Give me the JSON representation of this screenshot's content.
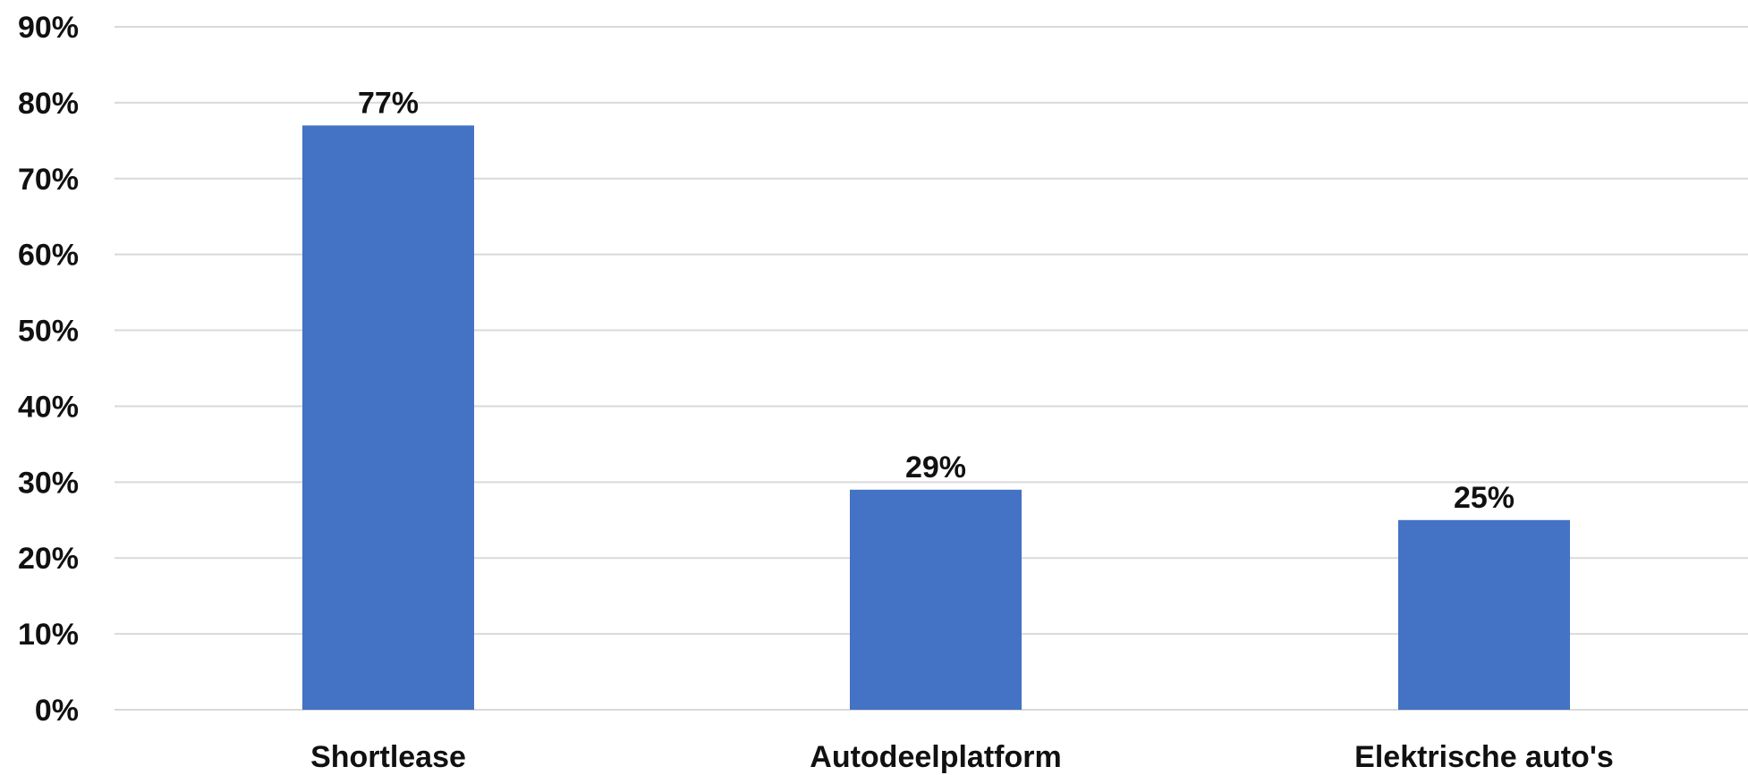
{
  "chart_data": {
    "type": "bar",
    "categories": [
      "Shortlease",
      "Autodeelplatform",
      "Elektrische auto's"
    ],
    "values": [
      77,
      29,
      25
    ],
    "data_labels": [
      "77%",
      "29%",
      "25%"
    ],
    "y_ticks": [
      {
        "value": 0,
        "label": "0%"
      },
      {
        "value": 10,
        "label": "10%"
      },
      {
        "value": 20,
        "label": "20%"
      },
      {
        "value": 30,
        "label": "30%"
      },
      {
        "value": 40,
        "label": "40%"
      },
      {
        "value": 50,
        "label": "50%"
      },
      {
        "value": 60,
        "label": "60%"
      },
      {
        "value": 70,
        "label": "70%"
      },
      {
        "value": 80,
        "label": "80%"
      },
      {
        "value": 90,
        "label": "90%"
      }
    ],
    "ylim": [
      0,
      90
    ],
    "grid": true,
    "legend": "none",
    "colors": {
      "bar": "#4472C4",
      "grid": "#D9D9D9",
      "text": "#111111"
    }
  }
}
